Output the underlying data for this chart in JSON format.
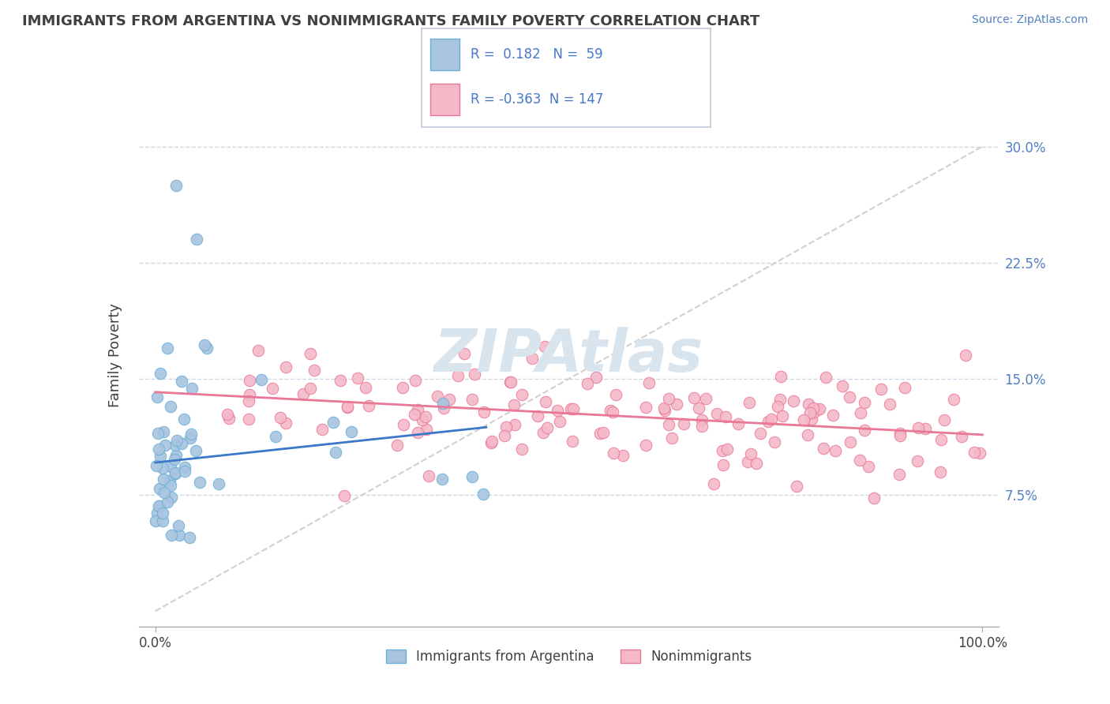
{
  "title": "IMMIGRANTS FROM ARGENTINA VS NONIMMIGRANTS FAMILY POVERTY CORRELATION CHART",
  "source": "Source: ZipAtlas.com",
  "ylabel": "Family Poverty",
  "xlim": [
    -2,
    102
  ],
  "ylim": [
    -1,
    34
  ],
  "yticks": [
    7.5,
    15.0,
    22.5,
    30.0
  ],
  "ytick_labels_right": [
    "7.5%",
    "15.0%",
    "22.5%",
    "30.0%"
  ],
  "xtick_labels": [
    "0.0%",
    "100.0%"
  ],
  "legend_label_blue": "Immigrants from Argentina",
  "legend_label_pink": "Nonimmigrants",
  "r_blue": 0.182,
  "n_blue": 59,
  "r_pink": -0.363,
  "n_pink": 147,
  "blue_color": "#a8c4e0",
  "blue_edge": "#6aaed6",
  "pink_color": "#f4b8c8",
  "pink_edge": "#e8789a",
  "blue_line_color": "#3c78c8",
  "pink_line_color": "#e87896",
  "diag_line_color": "#c8c8c8",
  "background_color": "#ffffff",
  "grid_color": "#d0d8e8",
  "watermark_color": "#d8e4ee",
  "title_color": "#404040",
  "source_color": "#5080c0",
  "legend_text_color": "#404040",
  "legend_r_color": "#4878c8"
}
